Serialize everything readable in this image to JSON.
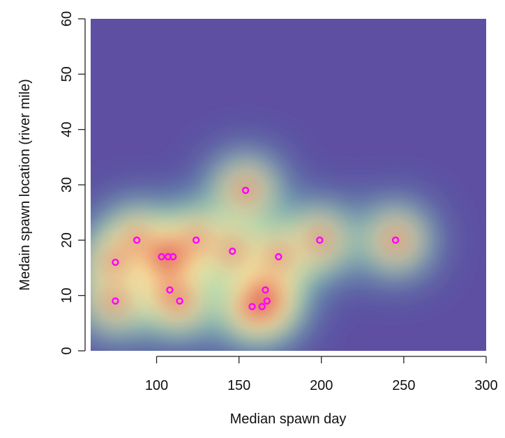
{
  "chart_data": {
    "type": "scatter",
    "title": "",
    "xlabel": "Median spawn day",
    "ylabel": "Medain spawn location (river mile)",
    "xlim": [
      60,
      300
    ],
    "ylim": [
      0,
      60
    ],
    "xticks": [
      100,
      150,
      200,
      250,
      300
    ],
    "yticks": [
      0,
      10,
      20,
      30,
      40,
      50,
      60
    ],
    "background": "2D kernel density heatmap",
    "colors": {
      "background": "#5e4fa2",
      "points": "#ff00ff",
      "palette": [
        "#5e4fa2",
        "#3288bd",
        "#66c2a5",
        "#abdda4",
        "#e6f598",
        "#ffffbf",
        "#fee08b",
        "#fdae61",
        "#f46d43",
        "#d53e4f",
        "#9e0142"
      ]
    },
    "points": [
      {
        "x": 75,
        "y": 16
      },
      {
        "x": 75,
        "y": 9
      },
      {
        "x": 88,
        "y": 20
      },
      {
        "x": 103,
        "y": 17
      },
      {
        "x": 107,
        "y": 17
      },
      {
        "x": 110,
        "y": 17
      },
      {
        "x": 108,
        "y": 11
      },
      {
        "x": 114,
        "y": 9
      },
      {
        "x": 124,
        "y": 20
      },
      {
        "x": 146,
        "y": 18
      },
      {
        "x": 154,
        "y": 29
      },
      {
        "x": 158,
        "y": 8
      },
      {
        "x": 164,
        "y": 8
      },
      {
        "x": 166,
        "y": 11
      },
      {
        "x": 167,
        "y": 9
      },
      {
        "x": 174,
        "y": 17
      },
      {
        "x": 199,
        "y": 20
      },
      {
        "x": 245,
        "y": 20
      }
    ]
  }
}
